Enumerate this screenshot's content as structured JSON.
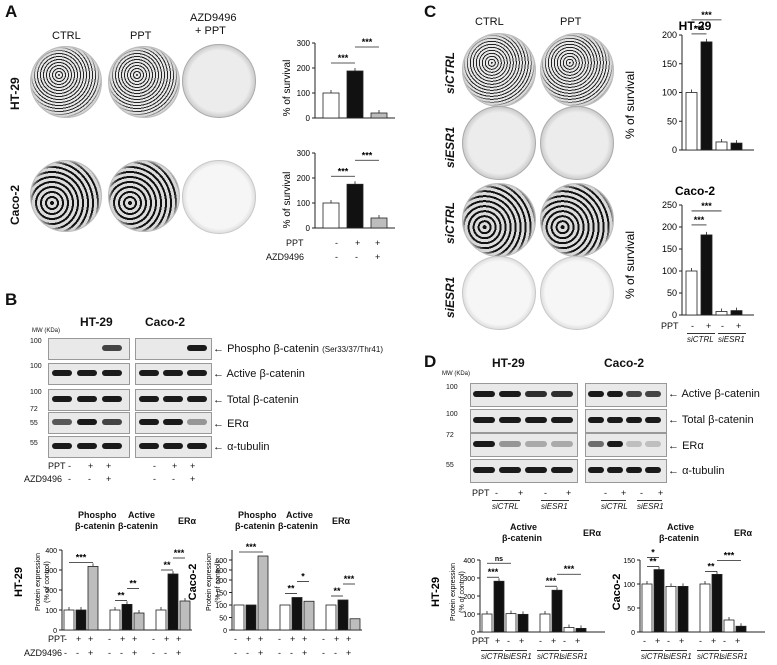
{
  "panels": {
    "A": {
      "letter": "A",
      "cols": [
        "CTRL",
        "PPT",
        "AZD9496",
        "+ PPT"
      ],
      "rows": [
        "HT-29",
        "Caco-2"
      ],
      "ylabel": "% of survival",
      "treat": {
        "ppt_label": "PPT",
        "azd_label": "AZD9496",
        "ppt": [
          "-",
          "+",
          "+"
        ],
        "azd": [
          "-",
          "-",
          "+"
        ]
      }
    },
    "B": {
      "letter": "B",
      "cell_lines": [
        "HT-29",
        "Caco-2"
      ],
      "mw_label": "MW (KDa)",
      "mw": [
        "100",
        "100",
        "100",
        "72",
        "55",
        "55"
      ],
      "blots": [
        "Phospho β-catenin",
        "(Ser33/37/Thr41)",
        "Active β-catenin",
        "Total β-catenin",
        "ERα",
        "α-tubulin"
      ],
      "ppt_label": "PPT",
      "azd_label": "AZD9496",
      "ppt": [
        "-",
        "+",
        "+",
        "-",
        "+",
        "+"
      ],
      "azd": [
        "-",
        "-",
        "+",
        "-",
        "-",
        "+"
      ],
      "groups": [
        "Phospho",
        "β-catenin",
        "Active",
        "β-catenin",
        "ERα"
      ],
      "ylabel1": "Protein expression",
      "ylabel2": "(% of control)",
      "row_ht": "HT-29",
      "row_caco": "Caco-2",
      "chart_treat": {
        "ppt": [
          "-",
          "+",
          "+",
          "-",
          "+",
          "+",
          "-",
          "+",
          "+"
        ],
        "azd": [
          "-",
          "-",
          "+",
          "-",
          "-",
          "+",
          "-",
          "-",
          "+"
        ]
      }
    },
    "C": {
      "letter": "C",
      "cols": [
        "CTRL",
        "PPT"
      ],
      "rows": [
        "siCTRL",
        "siESR1",
        "siCTRL",
        "siESR1"
      ],
      "titles": [
        "HT-29",
        "Caco-2"
      ],
      "ylabel": "% of survival",
      "ppt_label": "PPT",
      "ppt": [
        "-",
        "+",
        "-",
        "+"
      ],
      "groups": [
        "siCTRL",
        "siESR1"
      ]
    },
    "D": {
      "letter": "D",
      "cell_lines": [
        "HT-29",
        "Caco-2"
      ],
      "mw_label": "MW (KDa)",
      "mw": [
        "100",
        "100",
        "72",
        "55"
      ],
      "blots": [
        "Active β-catenin",
        "Total β-catenin",
        "ERα",
        "α-tubulin"
      ],
      "ppt_label": "PPT",
      "ppt": [
        "-",
        "+",
        "-",
        "+"
      ],
      "groups": [
        "siCTRL",
        "siESR1"
      ],
      "chart_groups": [
        "Active",
        "β-catenin",
        "ERα"
      ],
      "ylabel1": "Protein expression",
      "ylabel2": "(% of control)",
      "row_ht": "HT-29",
      "row_caco": "Caco-2",
      "chart_ppt": [
        "-",
        "+",
        "-",
        "+",
        "-",
        "+",
        "-",
        "+"
      ],
      "chart_groups_x": [
        "siCTRL",
        "siESR1",
        "siCTRL",
        "siESR1"
      ],
      "ns": "ns"
    }
  },
  "chart_data": [
    {
      "type": "bar",
      "id": "A-HT29",
      "categories": [
        "CTRL",
        "PPT",
        "AZD9496 + PPT"
      ],
      "values": [
        100,
        188,
        20
      ],
      "ylabel": "% of survival",
      "ylim": [
        0,
        300
      ],
      "yticks": [
        0,
        100,
        200,
        300
      ],
      "significance": [
        "***",
        "***"
      ]
    },
    {
      "type": "bar",
      "id": "A-Caco2",
      "categories": [
        "CTRL",
        "PPT",
        "AZD9496 + PPT"
      ],
      "values": [
        100,
        175,
        40
      ],
      "ylabel": "% of survival",
      "ylim": [
        0,
        300
      ],
      "yticks": [
        0,
        100,
        200,
        300
      ],
      "significance": [
        "***",
        "***"
      ]
    },
    {
      "type": "bar",
      "id": "B-HT29",
      "categories": [
        "Phospho β-catenin",
        "Active β-catenin",
        "ERα"
      ],
      "series": [
        {
          "values": [
            100,
            100,
            318
          ]
        },
        {
          "values": [
            100,
            128,
            85
          ]
        },
        {
          "values": [
            100,
            280,
            145
          ]
        }
      ],
      "ylim": [
        0,
        400
      ],
      "yticks": [
        0,
        100,
        200,
        300,
        400
      ],
      "significance": [
        "***",
        "**",
        "**",
        "**",
        "***"
      ]
    },
    {
      "type": "bar",
      "id": "B-Caco2",
      "categories": [
        "Phospho β-catenin",
        "Active β-catenin",
        "ERα"
      ],
      "series": [
        {
          "values": [
            100,
            100,
            680
          ]
        },
        {
          "values": [
            100,
            130,
            115
          ]
        },
        {
          "values": [
            100,
            120,
            45
          ]
        }
      ],
      "ylim": [
        0,
        800
      ],
      "yticks": [
        0,
        50,
        100,
        150,
        200,
        400,
        600
      ],
      "significance": [
        "***",
        "**",
        "*",
        "**",
        "***"
      ]
    },
    {
      "type": "bar",
      "id": "C-HT29",
      "categories": [
        "siCTRL -",
        "siCTRL +",
        "siESR1 -",
        "siESR1 +"
      ],
      "values": [
        100,
        188,
        14,
        12
      ],
      "ylabel": "% of survival",
      "ylim": [
        0,
        200
      ],
      "yticks": [
        0,
        50,
        100,
        150,
        200
      ],
      "significance": [
        "***",
        "***"
      ]
    },
    {
      "type": "bar",
      "id": "C-Caco2",
      "categories": [
        "siCTRL -",
        "siCTRL +",
        "siESR1 -",
        "siESR1 +"
      ],
      "values": [
        100,
        182,
        8,
        10
      ],
      "ylabel": "% of survival",
      "ylim": [
        0,
        250
      ],
      "yticks": [
        0,
        50,
        100,
        150,
        200,
        250
      ],
      "significance": [
        "***",
        "***"
      ]
    },
    {
      "type": "bar",
      "id": "D-HT29",
      "categories": [
        "siCTRL -",
        "siCTRL +",
        "siESR1 -",
        "siESR1 +",
        "siCTRL -",
        "siCTRL +",
        "siESR1 -",
        "siESR1 +"
      ],
      "values": [
        100,
        282,
        102,
        98,
        100,
        232,
        25,
        20
      ],
      "ylim": [
        0,
        400
      ],
      "yticks": [
        0,
        100,
        200,
        300,
        400
      ],
      "significance": [
        "ns",
        "***",
        "***",
        "***"
      ]
    },
    {
      "type": "bar",
      "id": "D-Caco2",
      "categories": [
        "siCTRL -",
        "siCTRL +",
        "siESR1 -",
        "siESR1 +",
        "siCTRL -",
        "siCTRL +",
        "siESR1 -",
        "siESR1 +"
      ],
      "values": [
        100,
        130,
        95,
        95,
        100,
        120,
        25,
        12
      ],
      "ylim": [
        0,
        150
      ],
      "yticks": [
        0,
        50,
        100,
        150
      ],
      "significance": [
        "*",
        "**",
        "**",
        "***"
      ]
    }
  ]
}
